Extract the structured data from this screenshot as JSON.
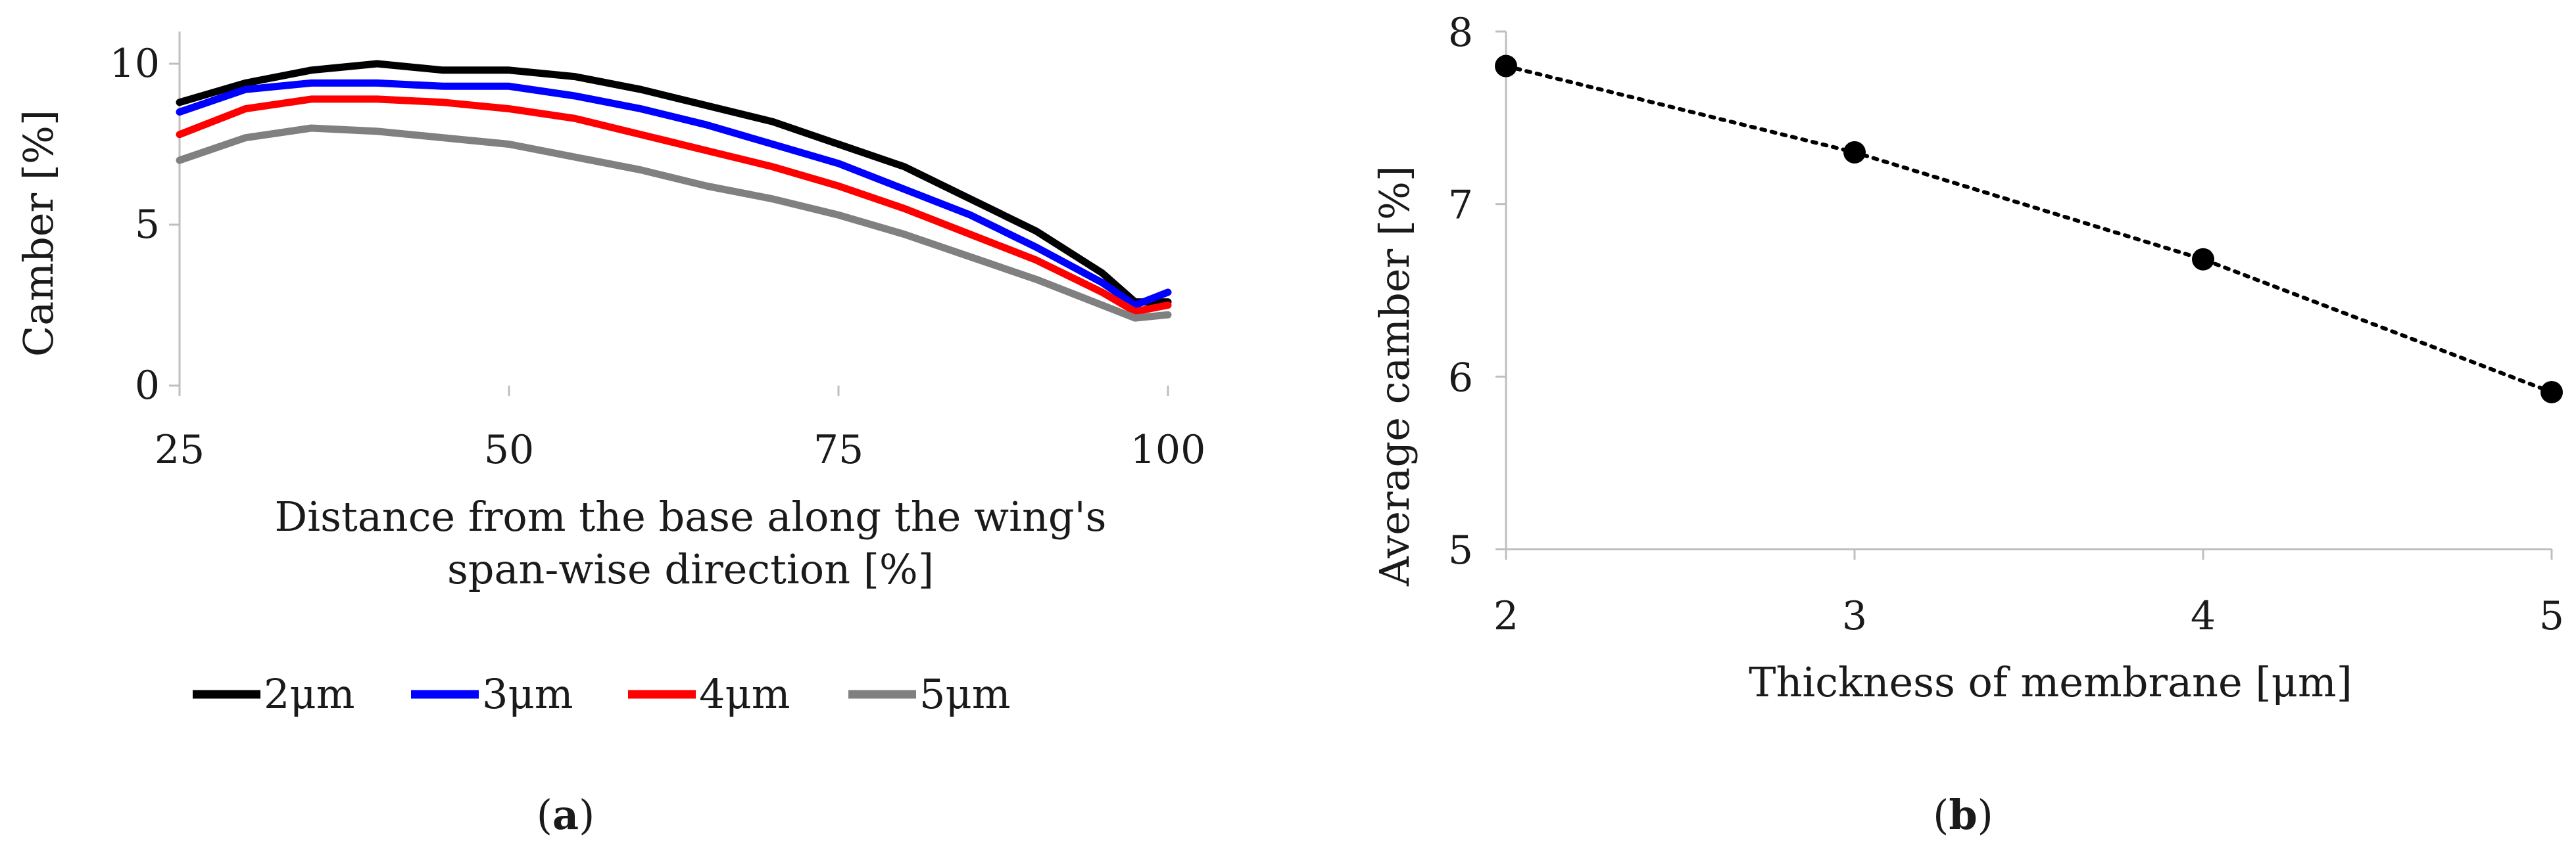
{
  "chart_data": [
    {
      "panel": "(a)",
      "panel_open": "(",
      "panel_letter": "a",
      "panel_close": ")",
      "type": "line",
      "title": "",
      "xlabel_lines": [
        "Distance from the base along the wing's",
        "span-wise direction [%]"
      ],
      "ylabel": "Camber [%]",
      "xlim": [
        25,
        100
      ],
      "ylim": [
        0,
        11
      ],
      "xticks": [
        25,
        50,
        75,
        100
      ],
      "yticks": [
        0,
        5,
        10
      ],
      "grid": false,
      "legend_position": "bottom",
      "x": [
        25,
        30,
        35,
        40,
        45,
        50,
        55,
        60,
        65,
        70,
        75,
        80,
        85,
        90,
        95,
        97.5,
        100
      ],
      "series": [
        {
          "name": "2μm",
          "color": "#000000",
          "values": [
            8.8,
            9.4,
            9.8,
            10.0,
            9.8,
            9.8,
            9.6,
            9.2,
            8.7,
            8.2,
            7.5,
            6.8,
            5.8,
            4.8,
            3.5,
            2.6,
            2.6
          ]
        },
        {
          "name": "3μm",
          "color": "#0000ff",
          "values": [
            8.5,
            9.2,
            9.4,
            9.4,
            9.3,
            9.3,
            9.0,
            8.6,
            8.1,
            7.5,
            6.9,
            6.1,
            5.3,
            4.3,
            3.2,
            2.5,
            2.9
          ]
        },
        {
          "name": "4μm",
          "color": "#ff0000",
          "values": [
            7.8,
            8.6,
            8.9,
            8.9,
            8.8,
            8.6,
            8.3,
            7.8,
            7.3,
            6.8,
            6.2,
            5.5,
            4.7,
            3.9,
            2.9,
            2.3,
            2.5
          ]
        },
        {
          "name": "5μm",
          "color": "#808080",
          "values": [
            7.0,
            7.7,
            8.0,
            7.9,
            7.7,
            7.5,
            7.1,
            6.7,
            6.2,
            5.8,
            5.3,
            4.7,
            4.0,
            3.3,
            2.5,
            2.1,
            2.2
          ]
        }
      ]
    },
    {
      "panel": "(b)",
      "panel_open": "(",
      "panel_letter": "b",
      "panel_close": ")",
      "type": "scatter",
      "title": "",
      "xlabel": "Thickness of membrane [μm]",
      "ylabel": "Average camber [%]",
      "xlim": [
        2,
        5
      ],
      "ylim": [
        5,
        8
      ],
      "xticks": [
        2,
        3,
        4,
        5
      ],
      "yticks": [
        5,
        6,
        7,
        8
      ],
      "grid": false,
      "trendline": "dotted",
      "series": [
        {
          "name": "Average camber",
          "color": "#000000",
          "x": [
            2,
            3,
            4,
            5
          ],
          "values": [
            7.8,
            7.3,
            6.68,
            5.91
          ]
        }
      ]
    }
  ]
}
